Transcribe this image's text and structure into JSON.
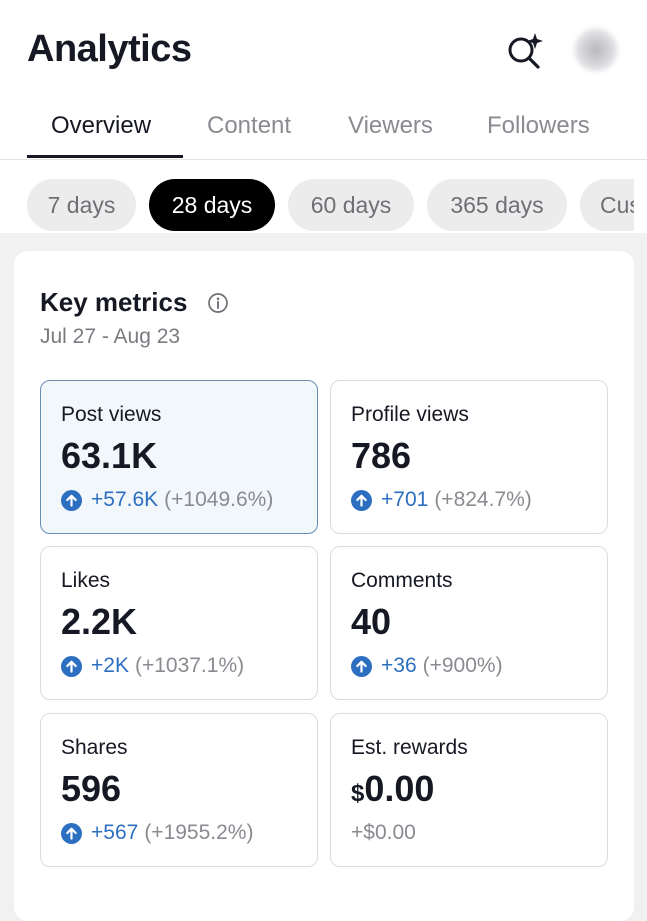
{
  "header": {
    "title": "Analytics",
    "icons": {
      "search": "sparkle-search-icon",
      "avatar": "avatar"
    }
  },
  "tabs": [
    {
      "label": "Overview",
      "active": true
    },
    {
      "label": "Content",
      "active": false
    },
    {
      "label": "Viewers",
      "active": false
    },
    {
      "label": "Followers",
      "active": false
    }
  ],
  "ranges": [
    {
      "label": "7 days",
      "active": false
    },
    {
      "label": "28 days",
      "active": true
    },
    {
      "label": "60 days",
      "active": false
    },
    {
      "label": "365 days",
      "active": false
    },
    {
      "label": "Custom",
      "active": false
    }
  ],
  "key_metrics": {
    "title": "Key metrics",
    "date_range": "Jul 27 - Aug 23",
    "cards": [
      {
        "label": "Post views",
        "value": "63.1K",
        "delta": "+57.6K",
        "pct": "(+1049.6%)",
        "selected": true
      },
      {
        "label": "Profile views",
        "value": "786",
        "delta": "+701",
        "pct": "(+824.7%)",
        "selected": false
      },
      {
        "label": "Likes",
        "value": "2.2K",
        "delta": "+2K",
        "pct": "(+1037.1%)",
        "selected": false
      },
      {
        "label": "Comments",
        "value": "40",
        "delta": "+36",
        "pct": "(+900%)",
        "selected": false
      },
      {
        "label": "Shares",
        "value": "596",
        "delta": "+567",
        "pct": "(+1955.2%)",
        "selected": false
      },
      {
        "label": "Est. rewards",
        "currency": "$",
        "value": "0.00",
        "change": "+$0.00",
        "selected": false
      }
    ]
  },
  "colors": {
    "accent_blue": "#2c6fc0",
    "text_primary": "#161823",
    "text_muted": "#8a8b91",
    "chip_active": "#000000",
    "selected_card_bg": "#f2f7fc"
  }
}
